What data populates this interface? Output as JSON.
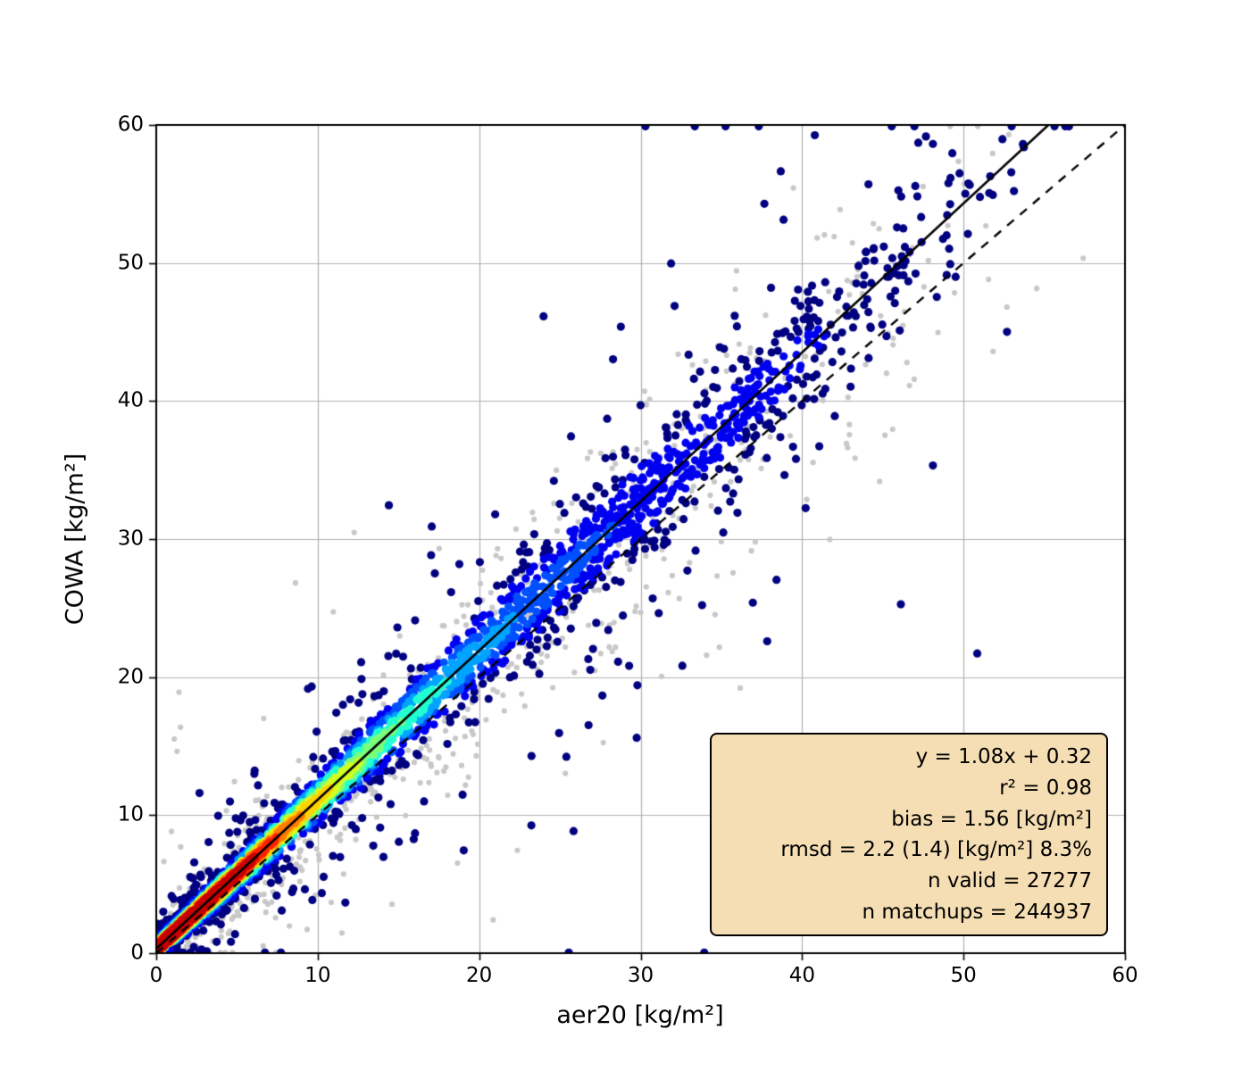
{
  "figure": {
    "background": "#ffffff"
  },
  "chart_data": {
    "type": "scatter",
    "title": "",
    "xlabel": "aer20 [kg/m²]",
    "ylabel": "COWA [kg/m²]",
    "xlim": [
      0,
      60
    ],
    "ylim": [
      0,
      60
    ],
    "xticks": [
      0,
      10,
      20,
      30,
      40,
      50,
      60
    ],
    "yticks": [
      0,
      10,
      20,
      30,
      40,
      50,
      60
    ],
    "grid": true,
    "grid_color": "#b0b0b0",
    "identity_line": {
      "style": "dashed",
      "color": "#000000",
      "slope": 1.0,
      "intercept": 0.0
    },
    "fit_line": {
      "style": "solid",
      "color": "#000000",
      "slope": 1.08,
      "intercept": 0.32
    },
    "series": [
      {
        "name": "all matchups",
        "marker_color": "#c8c8c8",
        "n": 244937
      },
      {
        "name": "valid matchups density colored",
        "colormap": "jet",
        "n": 27277
      }
    ],
    "density_colormap": [
      "#000080",
      "#0000f1",
      "#0050ff",
      "#00a4ff",
      "#22ffd2",
      "#7bff7b",
      "#d2ff22",
      "#ffd200",
      "#ff7b00",
      "#ff2200",
      "#c80000"
    ],
    "point_cloud": {
      "seed": 7,
      "n_gray": 950,
      "n_colored": 3000
    },
    "stats_box": {
      "background": "#f5deb3",
      "border_color": "#000000",
      "lines": [
        "y = 1.08x + 0.32",
        "r² = 0.98",
        "bias = 1.56 [kg/m²]",
        "rmsd = 2.2 (1.4) [kg/m²] 8.3%",
        "n valid = 27277",
        "n matchups = 244937"
      ]
    }
  }
}
